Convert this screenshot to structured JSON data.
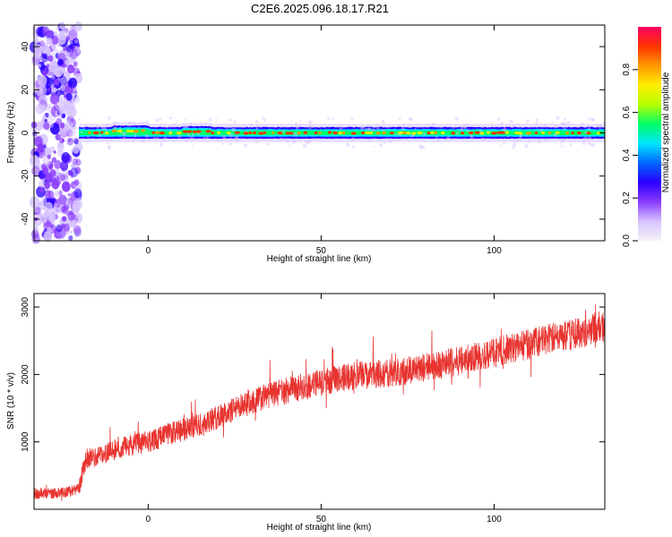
{
  "title": "C2E6.2025.096.18.17.R21",
  "colors": {
    "snr_line": "#e8332f",
    "colormap": [
      "#f5f5f5",
      "#d6c2ff",
      "#8a3cff",
      "#2a00ff",
      "#0066ff",
      "#00e5ff",
      "#00ff66",
      "#b6ff00",
      "#ffee00",
      "#ff9900",
      "#ff3300",
      "#ff0066"
    ]
  },
  "chart_data": [
    {
      "type": "heatmap",
      "xlabel": "Height of straight line (km)",
      "ylabel": "Frequency (Hz)",
      "xlim": [
        -33,
        132
      ],
      "ylim": [
        -50,
        50
      ],
      "xticks": [
        0,
        50,
        100
      ],
      "yticks": [
        -40,
        -20,
        0,
        20,
        40
      ],
      "grid": false,
      "colorbar": {
        "label": "Normalized spectral amplitude",
        "range": [
          0,
          1
        ],
        "ticks": [
          0.0,
          0.2,
          0.4,
          0.6,
          0.8
        ]
      },
      "features": {
        "noise_region_x": [
          -33,
          -20
        ],
        "band_center_hz": 0,
        "band_halfwidth_hz": 2.5,
        "band_start_x": -20,
        "bumps": [
          {
            "x0": -10,
            "x1": 0,
            "offset_hz": 1.5
          },
          {
            "x0": 10,
            "x1": 18,
            "offset_hz": 1.0
          }
        ]
      }
    },
    {
      "type": "line",
      "xlabel": "Height of straight line (km)",
      "ylabel": "SNR (10 * v/v)",
      "xlim": [
        -33,
        132
      ],
      "ylim": [
        0,
        3200
      ],
      "xticks": [
        0,
        50,
        100
      ],
      "yticks": [
        1000,
        2000,
        3000
      ],
      "grid": false,
      "series": [
        {
          "trend_x": [
            -33,
            -24,
            -20,
            -18,
            -15,
            -10,
            -5,
            0,
            5,
            10,
            15,
            20,
            25,
            30,
            35,
            40,
            45,
            50,
            55,
            60,
            65,
            70,
            75,
            80,
            85,
            90,
            95,
            100,
            105,
            110,
            115,
            120,
            125,
            130,
            132
          ],
          "trend_y": [
            220,
            250,
            300,
            750,
            780,
            880,
            960,
            1000,
            1100,
            1180,
            1260,
            1360,
            1480,
            1600,
            1690,
            1760,
            1820,
            1880,
            1940,
            1980,
            2000,
            2020,
            2060,
            2100,
            2150,
            2200,
            2260,
            2320,
            2390,
            2450,
            2510,
            2570,
            2630,
            2700,
            2720
          ],
          "noise_amplitude": 200,
          "spike_max_y": 3200
        }
      ]
    }
  ]
}
